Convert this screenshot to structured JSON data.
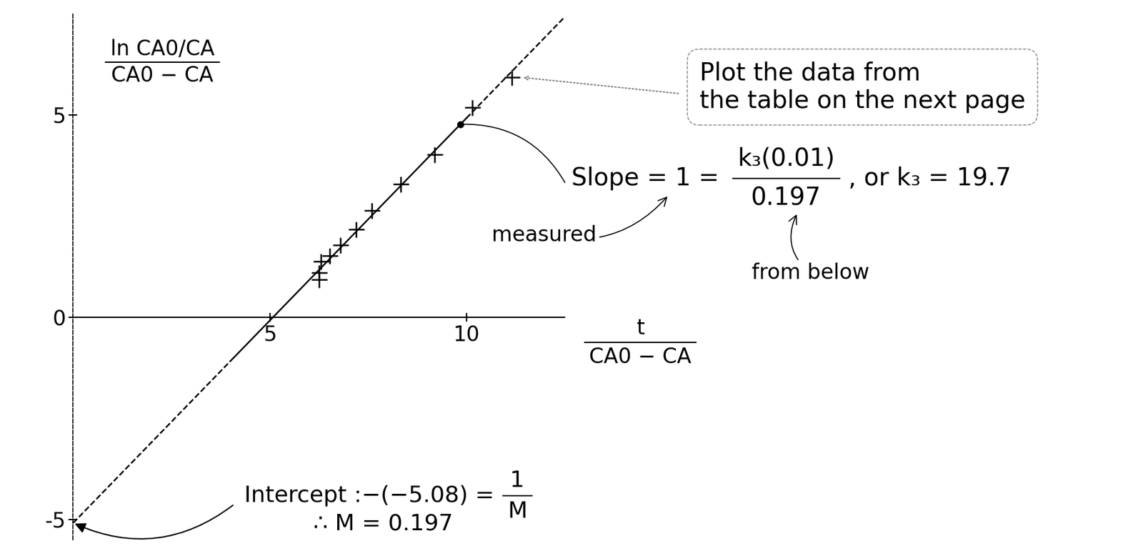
{
  "chart_data": {
    "type": "scatter",
    "y_label": {
      "numerator": "ln CA0/CA",
      "denominator": "CA0 − CA"
    },
    "x_label": {
      "numerator": "t",
      "denominator": "CA0 − CA"
    },
    "series": [
      {
        "type": "scatter",
        "marker": "plus",
        "color": "#000000",
        "x": [
          6.26,
          6.26,
          6.3,
          6.52,
          6.8,
          7.19,
          7.6,
          8.33,
          9.19,
          10.15,
          11.15
        ],
        "values": [
          0.93,
          1.1,
          1.39,
          1.52,
          1.79,
          2.18,
          2.64,
          3.3,
          4.02,
          5.18,
          5.93
        ]
      },
      {
        "type": "line",
        "line_style": "dashed",
        "color": "#000000",
        "x": [
          0,
          4.0
        ],
        "values": [
          -5.08,
          -1.08
        ]
      },
      {
        "type": "line",
        "line_style": "solid",
        "color": "#000000",
        "x": [
          4.0,
          10.0
        ],
        "values": [
          -1.08,
          4.92
        ]
      },
      {
        "type": "line",
        "line_style": "dashed",
        "color": "#000000",
        "x": [
          10.0,
          12.5
        ],
        "values": [
          4.92,
          7.42
        ]
      }
    ],
    "slope_point": {
      "x": 9.85,
      "y": 4.77
    },
    "intercept_point": {
      "x": 0,
      "y": -5.08
    },
    "xlim": [
      0,
      12.5
    ],
    "ylim": [
      -5.5,
      7.5
    ],
    "xticks": [
      5,
      10
    ],
    "yticks": [
      -5,
      0,
      5
    ],
    "annotations": {
      "note": "Plot the data from\nthe table on the next page",
      "slope": {
        "text": "Slope = 1 =",
        "numerator": "k₃(0.01)",
        "denominator": "0.197",
        "suffix": ", or k₃ = 19.7"
      },
      "measured": "measured",
      "from_below": "from below",
      "intercept": {
        "text": "Intercept :−(−5.08) =",
        "numerator": "1",
        "denominator": "M"
      },
      "result": "∴ M = 0.197"
    }
  }
}
